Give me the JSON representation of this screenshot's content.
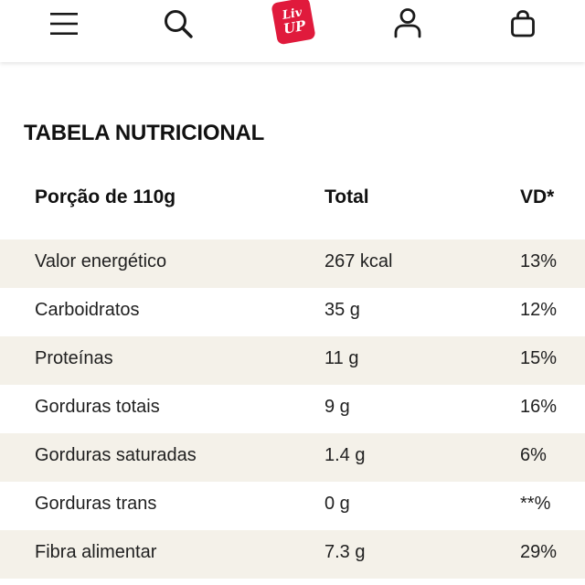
{
  "header": {
    "menu_icon": "hamburger-menu-icon",
    "search_icon": "search-icon",
    "logo": {
      "line1": "Liv",
      "line2": "UP",
      "color": "#e01a3c"
    },
    "account_icon": "user-icon",
    "bag_icon": "shopping-bag-icon"
  },
  "title": "TABELA NUTRICIONAL",
  "table": {
    "headers": {
      "portion": "Porção de 110g",
      "total": "Total",
      "vd": "VD*"
    },
    "rows": [
      {
        "name": "Valor energético",
        "total": "267 kcal",
        "vd": "13%"
      },
      {
        "name": "Carboidratos",
        "total": "35 g",
        "vd": "12%"
      },
      {
        "name": "Proteínas",
        "total": "11 g",
        "vd": "15%"
      },
      {
        "name": "Gorduras totais",
        "total": "9 g",
        "vd": "16%"
      },
      {
        "name": "Gorduras saturadas",
        "total": "1.4 g",
        "vd": "6%"
      },
      {
        "name": "Gorduras trans",
        "total": "0 g",
        "vd": "**%"
      },
      {
        "name": "Fibra alimentar",
        "total": "7.3 g",
        "vd": "29%"
      }
    ]
  },
  "colors": {
    "row_shade": "#f4f1e9",
    "brand": "#e01a3c"
  }
}
